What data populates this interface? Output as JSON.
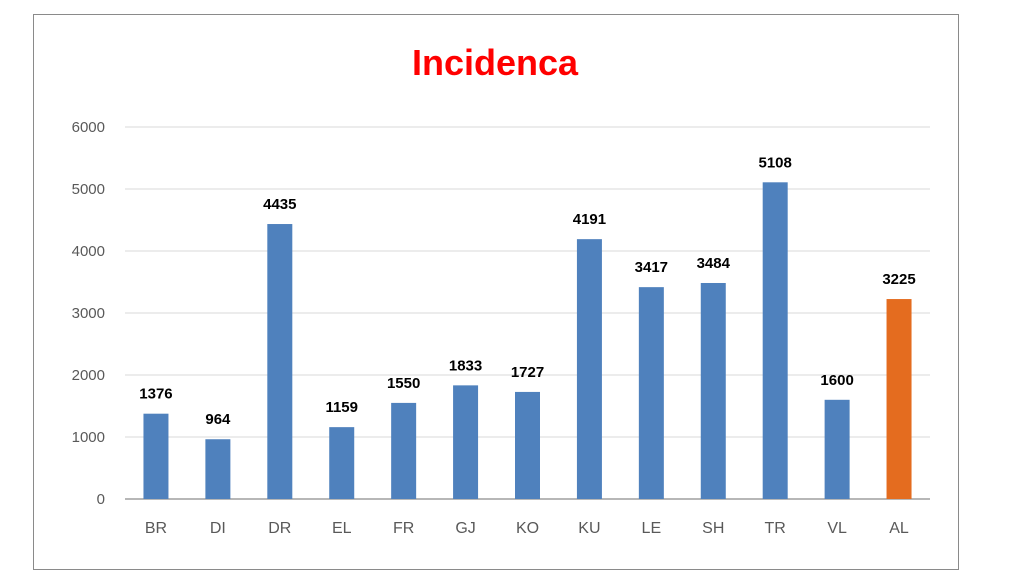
{
  "chart_data": {
    "type": "bar",
    "title": "Incidenca",
    "categories": [
      "BR",
      "DI",
      "DR",
      "EL",
      "FR",
      "GJ",
      "KO",
      "KU",
      "LE",
      "SH",
      "TR",
      "VL",
      "AL"
    ],
    "values": [
      1376,
      964,
      4435,
      1159,
      1550,
      1833,
      1727,
      4191,
      3417,
      3484,
      5108,
      1600,
      3225
    ],
    "ylim": [
      0,
      6000
    ],
    "yticks": [
      "0",
      "1000",
      "2000",
      "3000",
      "4000",
      "5000",
      "6000"
    ],
    "xlabel": "",
    "ylabel": "",
    "grid": true,
    "legend": "none",
    "data_labels": true,
    "colors": {
      "bar": "#4f81bd",
      "highlight_bar": "#e46c1f",
      "title": "#ff0000",
      "grid": "#d9d9d9",
      "axis": "#8c8c8c",
      "tick_label": "#595959",
      "data_label": "#000000"
    },
    "highlight_category": "AL"
  }
}
